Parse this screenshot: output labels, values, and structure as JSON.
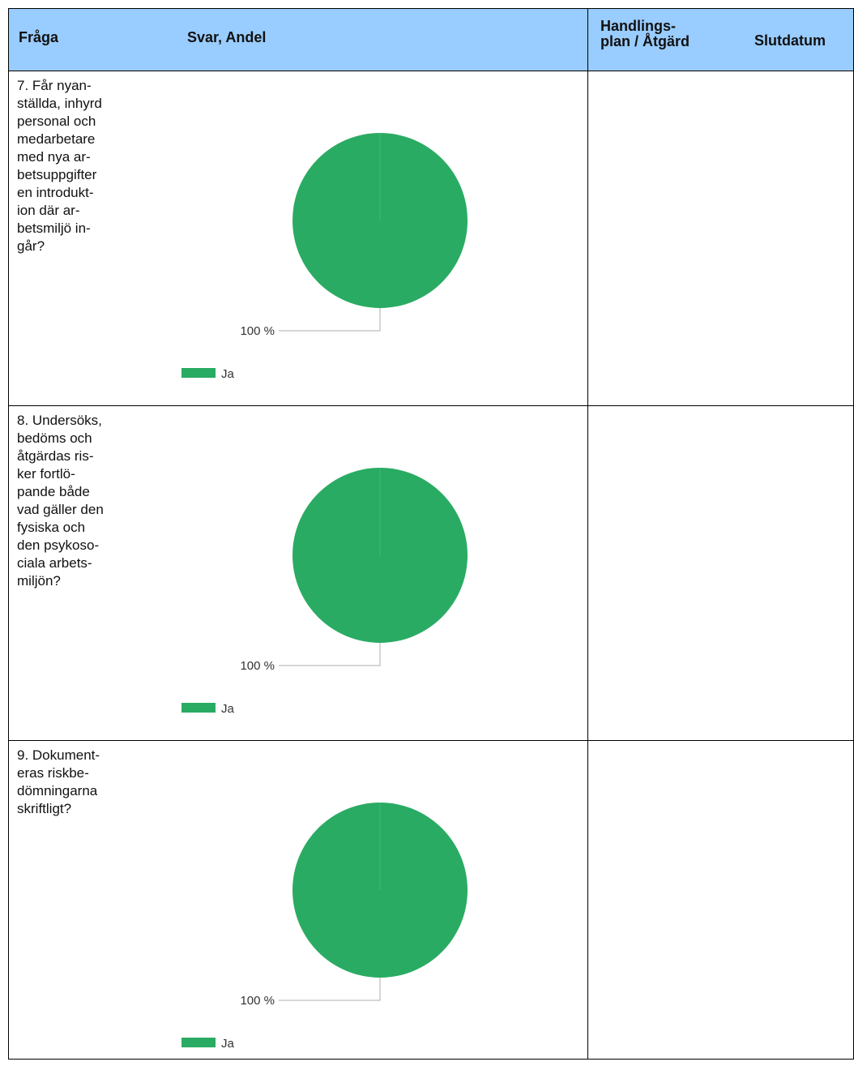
{
  "header": {
    "col_question": "Fråga",
    "col_answer": "Svar, Andel",
    "col_plan": "Handlings-\nplan / Åtgärd",
    "col_enddate": "Slutdatum"
  },
  "rows": [
    {
      "question": "7. Får nyan-\nställda, inhyrd\npersonal och\nmedarbetare\nmed nya ar-\nbetsuppgifter\nen introdukt-\nion där ar-\nbetsmiljö in-\ngår?",
      "chart_data": {
        "type": "pie",
        "slices": [
          {
            "label": "Ja",
            "value": 100,
            "color": "#2aab63"
          }
        ],
        "data_labels": [
          "100 %"
        ],
        "legend": [
          "Ja"
        ],
        "legend_placement": "bottom-left"
      }
    },
    {
      "question": "8. Undersöks,\nbedöms och\nåtgärdas ris-\nker fortlö-\npande både\nvad gäller den\nfysiska och\nden psykoso-\nciala arbets-\nmiljön?",
      "chart_data": {
        "type": "pie",
        "slices": [
          {
            "label": "Ja",
            "value": 100,
            "color": "#2aab63"
          }
        ],
        "data_labels": [
          "100 %"
        ],
        "legend": [
          "Ja"
        ],
        "legend_placement": "bottom-left"
      }
    },
    {
      "question": "9. Dokument-\neras riskbe-\ndömningarna\nskriftligt?",
      "chart_data": {
        "type": "pie",
        "slices": [
          {
            "label": "Ja",
            "value": 100,
            "color": "#2aab63"
          }
        ],
        "data_labels": [
          "100 %"
        ],
        "legend": [
          "Ja"
        ],
        "legend_placement": "bottom-left"
      }
    }
  ]
}
